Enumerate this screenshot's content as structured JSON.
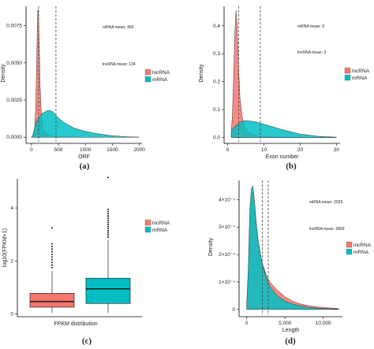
{
  "chart_data": [
    {
      "id": "a",
      "type": "area",
      "caption": "(a)",
      "xlabel": "ORF",
      "ylabel": "Density",
      "xlim": [
        -100,
        2050
      ],
      "ylim": [
        -0.0002,
        0.0088
      ],
      "xticks": [
        0,
        500,
        1000,
        1500,
        2000
      ],
      "xtick_labels": [
        "0",
        "500",
        "1000",
        "1500",
        "2000"
      ],
      "yticks": [
        0.0,
        0.0025,
        0.005,
        0.0075
      ],
      "ytick_labels": [
        "0.0000",
        "0.0025",
        "0.0050",
        "0.0075"
      ],
      "vlines": [
        134,
        455
      ],
      "annotations": [
        "mRNA mean: 455",
        "lncRNA mean: 134"
      ],
      "legend_position": "right",
      "grid": false,
      "series": [
        {
          "name": "lncRNA",
          "color": "#f8766d",
          "x": [
            0,
            30,
            60,
            80,
            100,
            110,
            120,
            130,
            140,
            150,
            160,
            180,
            200,
            220,
            260,
            300,
            400,
            500,
            700,
            1000
          ],
          "y": [
            0.0,
            0.0001,
            0.0006,
            0.002,
            0.0055,
            0.0075,
            0.0086,
            0.0084,
            0.007,
            0.0052,
            0.0035,
            0.0018,
            0.0009,
            0.0005,
            0.0003,
            0.0002,
            0.0001,
            5e-05,
            2e-05,
            0.0
          ]
        },
        {
          "name": "mRNA",
          "color": "#00bfc4",
          "x": [
            0,
            30,
            60,
            100,
            150,
            200,
            250,
            300,
            350,
            400,
            450,
            500,
            600,
            700,
            800,
            1000,
            1200,
            1500,
            1800,
            2000
          ],
          "y": [
            0.0,
            0.0002,
            0.0006,
            0.0011,
            0.0014,
            0.0016,
            0.0017,
            0.0018,
            0.0018,
            0.0017,
            0.0015,
            0.0013,
            0.001,
            0.0008,
            0.0006,
            0.0004,
            0.00025,
            0.0001,
            3e-05,
            1e-05
          ]
        }
      ]
    },
    {
      "id": "b",
      "type": "area",
      "caption": "(b)",
      "xlabel": "Exon number",
      "ylabel": "Density",
      "xlim": [
        -1,
        31
      ],
      "ylim": [
        -0.01,
        0.47
      ],
      "xticks": [
        0,
        10,
        20,
        30
      ],
      "xtick_labels": [
        "0",
        "10",
        "20",
        "30"
      ],
      "yticks": [
        0.0,
        0.1,
        0.2,
        0.3,
        0.4
      ],
      "ytick_labels": [
        "0.0",
        "0.1",
        "0.2",
        "0.3",
        "0.4"
      ],
      "vlines": [
        3,
        9
      ],
      "annotations": [
        "mRNA mean: 9",
        "lncRNA mean: 3"
      ],
      "legend_position": "right",
      "grid": false,
      "series": [
        {
          "name": "lncRNA",
          "color": "#f8766d",
          "x": [
            1,
            1.3,
            1.6,
            2.0,
            2.3,
            2.6,
            3.0,
            3.4,
            4.0,
            5.0,
            6.0,
            8.0,
            10,
            15,
            30
          ],
          "y": [
            0.02,
            0.08,
            0.2,
            0.38,
            0.455,
            0.4,
            0.25,
            0.14,
            0.07,
            0.03,
            0.015,
            0.006,
            0.003,
            0.001,
            0.0
          ]
        },
        {
          "name": "mRNA",
          "color": "#00bfc4",
          "x": [
            1,
            2,
            3,
            4,
            5,
            6,
            8,
            10,
            12,
            15,
            20,
            25,
            30
          ],
          "y": [
            0.025,
            0.04,
            0.05,
            0.058,
            0.06,
            0.059,
            0.055,
            0.047,
            0.04,
            0.028,
            0.012,
            0.004,
            0.001
          ]
        }
      ]
    },
    {
      "id": "c",
      "type": "box",
      "caption": "(c)",
      "xlabel": "FPKM distribution",
      "ylabel": "log10(FPKM+1)",
      "ylim": [
        -0.1,
        5.1
      ],
      "yticks": [
        0,
        2,
        4
      ],
      "ytick_labels": [
        "0",
        "2",
        "4"
      ],
      "legend_position": "right",
      "grid": false,
      "series": [
        {
          "name": "lncRNA",
          "color": "#f8766d",
          "whisker_low": 0.05,
          "q1": 0.26,
          "median": 0.47,
          "q3": 0.78,
          "whisker_high": 1.62,
          "outliers": [
            1.75,
            1.85,
            1.95,
            2.05,
            2.15,
            2.25,
            2.35,
            2.45,
            2.55,
            2.65,
            3.25
          ]
        },
        {
          "name": "mRNA",
          "color": "#00bfc4",
          "whisker_low": 0.05,
          "q1": 0.4,
          "median": 0.95,
          "q3": 1.35,
          "whisker_high": 2.8,
          "outliers": [
            2.9,
            2.98,
            3.06,
            3.14,
            3.22,
            3.3,
            3.38,
            3.46,
            3.54,
            3.62,
            3.7,
            3.78,
            3.86,
            3.94,
            5.15
          ]
        }
      ]
    },
    {
      "id": "d",
      "type": "area",
      "caption": "(d)",
      "xlabel": "Length",
      "ylabel": "Density",
      "xlim": [
        -1000,
        12500
      ],
      "ylim": [
        -1.5e-05,
        0.00047
      ],
      "xticks": [
        0,
        5000,
        10000
      ],
      "xtick_labels": [
        "0",
        "5,000",
        "10,000"
      ],
      "yticks": [
        0,
        0.0001,
        0.0002,
        0.0003,
        0.0004
      ],
      "ytick_labels": [
        "0",
        "1×10⁻⁴",
        "2×10⁻⁴",
        "3×10⁻⁴",
        "4×10⁻⁴"
      ],
      "vlines": [
        2026,
        2809
      ],
      "annotations": [
        "mRNA mean: 2026",
        "lncRNA mean: 2809"
      ],
      "legend_position": "right",
      "grid": false,
      "series": [
        {
          "name": "lncRNA",
          "color": "#f8766d",
          "x": [
            0,
            200,
            400,
            600,
            800,
            1000,
            1200,
            1500,
            2000,
            2500,
            3000,
            4000,
            5000,
            6000,
            7000,
            8000,
            9000,
            10000,
            11000,
            12000
          ],
          "y": [
            2e-05,
            0.0001,
            0.00028,
            0.00042,
            0.00043,
            0.00038,
            0.00031,
            0.00024,
            0.00017,
            0.00013,
            0.0001,
            7e-05,
            4.6e-05,
            3e-05,
            2e-05,
            1.4e-05,
            1e-05,
            7e-06,
            5e-06,
            3e-06
          ]
        },
        {
          "name": "mRNA",
          "color": "#00bfc4",
          "x": [
            0,
            200,
            400,
            600,
            800,
            1000,
            1200,
            1500,
            2000,
            2500,
            3000,
            4000,
            5000,
            6000,
            7000,
            8000,
            9000,
            10000,
            11000,
            12000
          ],
          "y": [
            2e-05,
            0.00015,
            0.00036,
            0.00044,
            0.00045,
            0.0004,
            0.00033,
            0.00025,
            0.00017,
            0.00012,
            8.5e-05,
            5e-05,
            3e-05,
            2e-05,
            1.3e-05,
            8e-06,
            5e-06,
            3e-06,
            2e-06,
            1e-06
          ]
        }
      ]
    }
  ]
}
